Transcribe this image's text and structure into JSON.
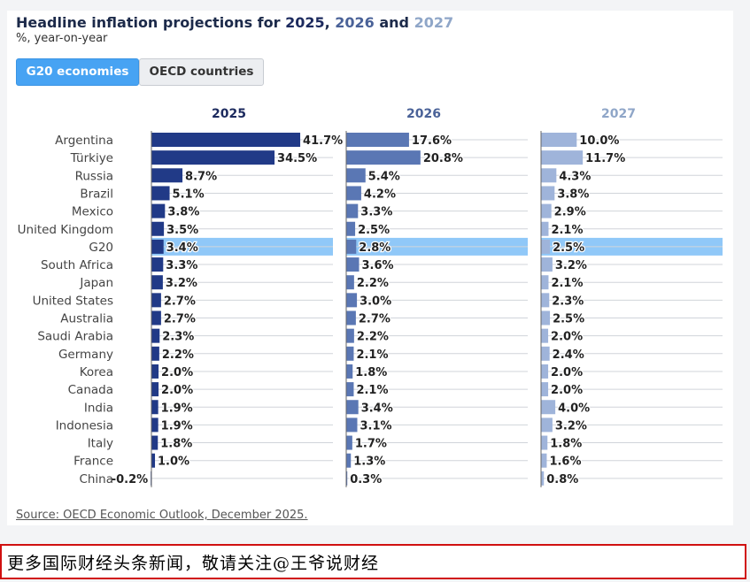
{
  "header": {
    "title_prefix": "Headline inflation projections for ",
    "y1": "2025",
    ", ": ", ",
    "y2": "2026",
    "and": " and ",
    "y3": "2027",
    "subtitle": "%, year-on-year"
  },
  "tabs": [
    {
      "label": "G20 economies",
      "active": true
    },
    {
      "label": "OECD countries",
      "active": false
    }
  ],
  "source": "Source: OECD Economic Outlook, December 2025.",
  "banner": "更多国际财经头条新闻，敬请关注@王爷说财经",
  "chart_data": {
    "type": "bar",
    "orientation": "horizontal",
    "highlight_category": "G20",
    "categories": [
      "Argentina",
      "Türkiye",
      "Russia",
      "Brazil",
      "Mexico",
      "United Kingdom",
      "G20",
      "South Africa",
      "Japan",
      "United States",
      "Australia",
      "Saudi Arabia",
      "Germany",
      "Korea",
      "Canada",
      "India",
      "Indonesia",
      "Italy",
      "France",
      "China"
    ],
    "series": [
      {
        "name": "2025",
        "color": "#213a87",
        "values": [
          41.7,
          34.5,
          8.7,
          5.1,
          3.8,
          3.5,
          3.4,
          3.3,
          3.2,
          2.7,
          2.7,
          2.3,
          2.2,
          2.0,
          2.0,
          1.9,
          1.9,
          1.8,
          1.0,
          -0.2
        ]
      },
      {
        "name": "2026",
        "color": "#5a77b4",
        "values": [
          17.6,
          20.8,
          5.4,
          4.2,
          3.3,
          2.5,
          2.8,
          3.6,
          2.2,
          3.0,
          2.7,
          2.2,
          2.1,
          1.8,
          2.1,
          3.4,
          3.1,
          1.7,
          1.3,
          0.3
        ]
      },
      {
        "name": "2027",
        "color": "#9fb4da",
        "values": [
          10.0,
          11.7,
          4.3,
          3.8,
          2.9,
          2.1,
          2.5,
          3.2,
          2.1,
          2.3,
          2.5,
          2.0,
          2.4,
          2.0,
          2.0,
          4.0,
          3.2,
          1.8,
          1.6,
          0.8
        ]
      }
    ],
    "value_suffix": "%",
    "colors": {
      "highlight": "#90c8f8",
      "title_2025": "#1c2a5e",
      "title_2026": "#4a6298",
      "title_2027": "#8fa6c8"
    }
  }
}
